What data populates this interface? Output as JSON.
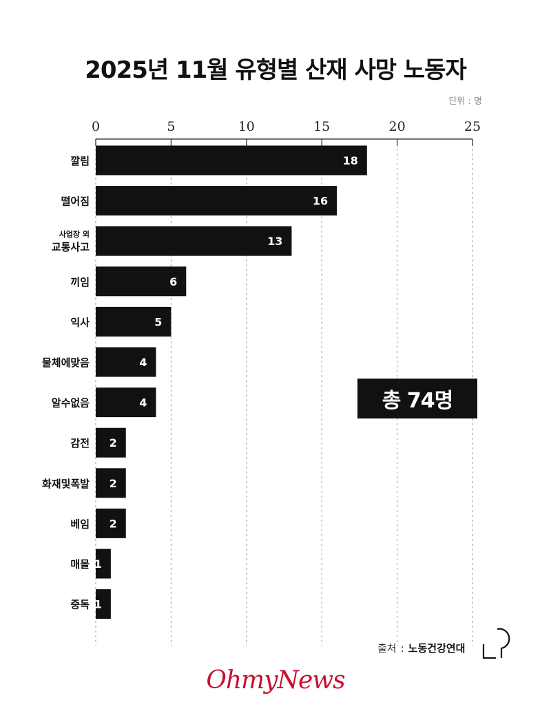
{
  "title": "2025년 11월 유형별 산재 사망 노동자",
  "unit_label": "단위 : 명",
  "total_label": "총 74명",
  "source": {
    "label": "출처",
    "separator": ":",
    "name": "노동건강연대"
  },
  "brand": "OhmyNews",
  "colors": {
    "bar": "#111111",
    "bar_label": "#ffffff",
    "grid": "#9a9a9a",
    "brand": "#c8102e"
  },
  "chart_data": {
    "type": "bar",
    "orientation": "horizontal",
    "categories": [
      [
        "깔림"
      ],
      [
        "떨어짐"
      ],
      [
        "사업장 외",
        "교통사고"
      ],
      [
        "끼임"
      ],
      [
        "익사"
      ],
      [
        "물체에맞음"
      ],
      [
        "알수없음"
      ],
      [
        "감전"
      ],
      [
        "화재및폭발"
      ],
      [
        "베임"
      ],
      [
        "매몰"
      ],
      [
        "중독"
      ]
    ],
    "values": [
      18,
      16,
      13,
      6,
      5,
      4,
      4,
      2,
      2,
      2,
      1,
      1
    ],
    "xlim": [
      0,
      25
    ],
    "xticks": [
      0,
      5,
      10,
      15,
      20,
      25
    ],
    "xaxis_position": "top",
    "grid": "vertical dashed",
    "data_labels": true
  }
}
